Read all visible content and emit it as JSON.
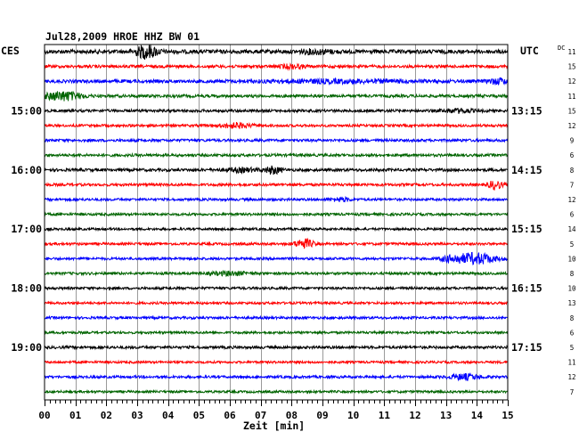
{
  "chart_data": {
    "type": "line",
    "title": "Jul28,2009   HROE HHZ BW 01",
    "left_time_label": "CES",
    "right_time_label": "UTC",
    "dc_label": "DC",
    "xlabel": "Zeit [min]",
    "xlim": [
      0,
      15
    ],
    "x_ticks": [
      "00",
      "01",
      "02",
      "03",
      "04",
      "05",
      "06",
      "07",
      "08",
      "09",
      "10",
      "11",
      "12",
      "13",
      "14",
      "15"
    ],
    "grid": true,
    "line_interval_minutes": 15,
    "left_hour_labels": [
      {
        "label": "15:00",
        "row": 4
      },
      {
        "label": "16:00",
        "row": 8
      },
      {
        "label": "17:00",
        "row": 12
      },
      {
        "label": "18:00",
        "row": 16
      },
      {
        "label": "19:00",
        "row": 20
      }
    ],
    "right_hour_labels": [
      {
        "label": "13:15",
        "row": 4
      },
      {
        "label": "14:15",
        "row": 8
      },
      {
        "label": "15:15",
        "row": 12
      },
      {
        "label": "16:15",
        "row": 16
      },
      {
        "label": "17:15",
        "row": 20
      }
    ],
    "dc_offsets": [
      11,
      15,
      12,
      11,
      15,
      12,
      9,
      6,
      8,
      7,
      12,
      6,
      14,
      5,
      10,
      8,
      10,
      13,
      8,
      6,
      5,
      11,
      12,
      7
    ],
    "trace_colors": [
      "#000000",
      "#ff0000",
      "#0000ff",
      "#006400"
    ],
    "traces": [
      {
        "row": 0,
        "color": "#000000",
        "amp": 2.2,
        "events": [
          {
            "t": 3.3,
            "a": 7,
            "w": 0.35
          },
          {
            "t": 8.8,
            "a": 2,
            "w": 0.5
          }
        ]
      },
      {
        "row": 1,
        "color": "#ff0000",
        "amp": 1.6,
        "events": [
          {
            "t": 8.0,
            "a": 2,
            "w": 0.4
          }
        ]
      },
      {
        "row": 2,
        "color": "#0000ff",
        "amp": 1.8,
        "events": [
          {
            "t": 9.5,
            "a": 1.5,
            "w": 2.5
          },
          {
            "t": 14.7,
            "a": 3,
            "w": 0.3
          }
        ]
      },
      {
        "row": 3,
        "color": "#006400",
        "amp": 1.6,
        "events": [
          {
            "t": 0.6,
            "a": 5,
            "w": 0.6
          }
        ]
      },
      {
        "row": 4,
        "color": "#000000",
        "amp": 1.5,
        "events": [
          {
            "t": 13.4,
            "a": 2,
            "w": 0.5
          }
        ]
      },
      {
        "row": 5,
        "color": "#ff0000",
        "amp": 1.4,
        "events": [
          {
            "t": 6.2,
            "a": 2.5,
            "w": 0.5
          }
        ]
      },
      {
        "row": 6,
        "color": "#0000ff",
        "amp": 1.5,
        "events": []
      },
      {
        "row": 7,
        "color": "#006400",
        "amp": 1.5,
        "events": []
      },
      {
        "row": 8,
        "color": "#000000",
        "amp": 1.6,
        "events": [
          {
            "t": 7.4,
            "a": 4,
            "w": 0.25
          },
          {
            "t": 6.4,
            "a": 2,
            "w": 0.5
          }
        ]
      },
      {
        "row": 9,
        "color": "#ff0000",
        "amp": 1.5,
        "events": [
          {
            "t": 14.6,
            "a": 5,
            "w": 0.2
          }
        ]
      },
      {
        "row": 10,
        "color": "#0000ff",
        "amp": 1.4,
        "events": [
          {
            "t": 9.6,
            "a": 2,
            "w": 0.3
          }
        ]
      },
      {
        "row": 11,
        "color": "#006400",
        "amp": 1.4,
        "events": []
      },
      {
        "row": 12,
        "color": "#000000",
        "amp": 1.3,
        "events": []
      },
      {
        "row": 13,
        "color": "#ff0000",
        "amp": 1.4,
        "events": [
          {
            "t": 8.4,
            "a": 5,
            "w": 0.3
          }
        ]
      },
      {
        "row": 14,
        "color": "#0000ff",
        "amp": 1.4,
        "events": [
          {
            "t": 14.0,
            "a": 6,
            "w": 0.6
          },
          {
            "t": 13.2,
            "a": 3,
            "w": 0.4
          }
        ]
      },
      {
        "row": 15,
        "color": "#006400",
        "amp": 1.4,
        "events": [
          {
            "t": 6.0,
            "a": 2,
            "w": 0.6
          }
        ]
      },
      {
        "row": 16,
        "color": "#000000",
        "amp": 1.4,
        "events": []
      },
      {
        "row": 17,
        "color": "#ff0000",
        "amp": 1.3,
        "events": []
      },
      {
        "row": 18,
        "color": "#0000ff",
        "amp": 1.4,
        "events": []
      },
      {
        "row": 19,
        "color": "#006400",
        "amp": 1.3,
        "events": []
      },
      {
        "row": 20,
        "color": "#000000",
        "amp": 1.5,
        "events": []
      },
      {
        "row": 21,
        "color": "#ff0000",
        "amp": 1.3,
        "events": []
      },
      {
        "row": 22,
        "color": "#0000ff",
        "amp": 1.4,
        "events": [
          {
            "t": 13.6,
            "a": 3,
            "w": 0.5
          }
        ]
      },
      {
        "row": 23,
        "color": "#006400",
        "amp": 1.3,
        "events": []
      }
    ]
  }
}
